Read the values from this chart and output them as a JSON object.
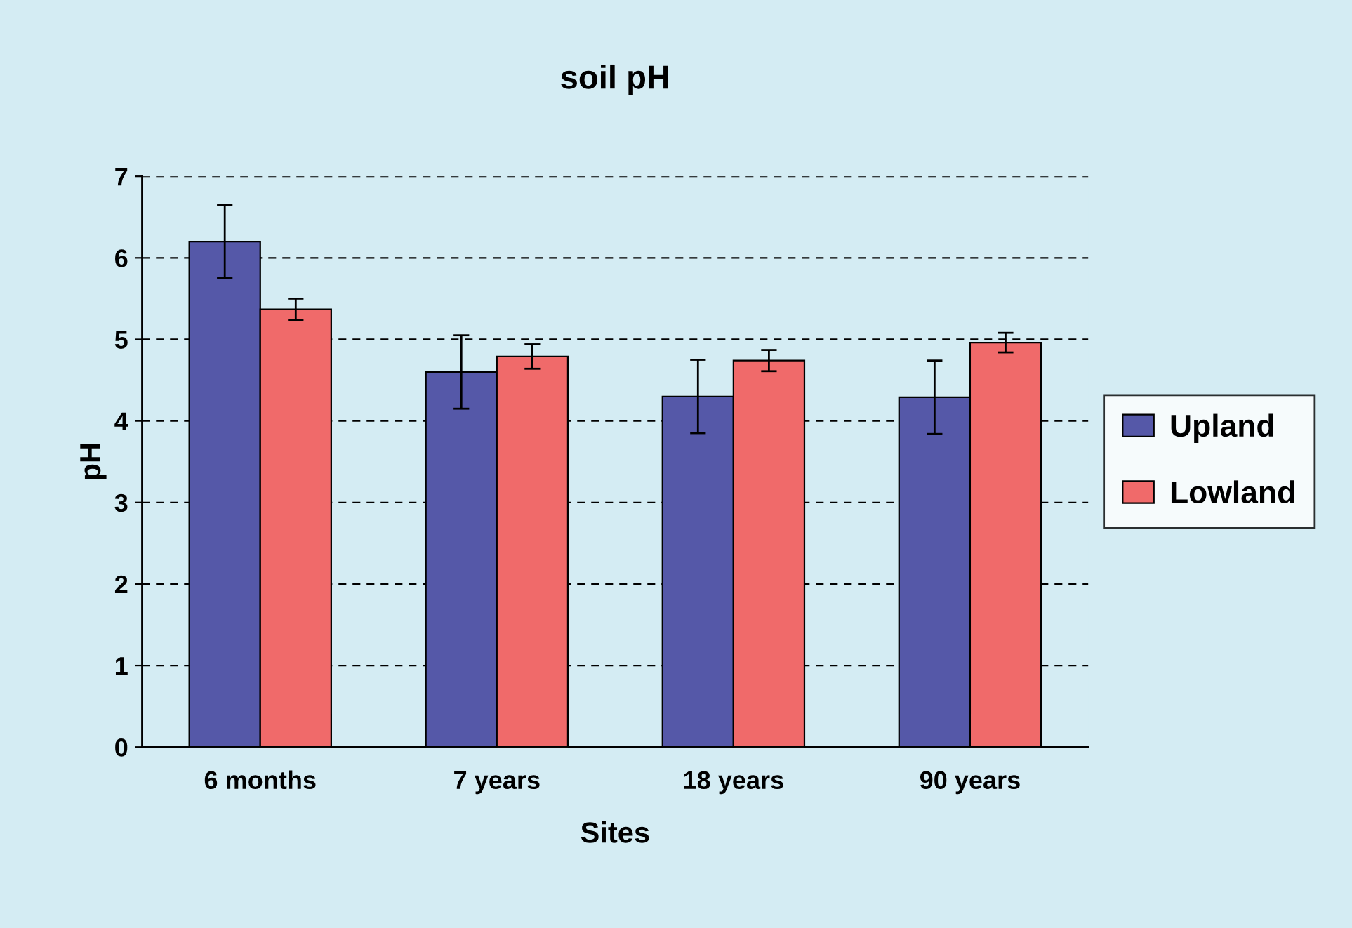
{
  "chart_data": {
    "type": "bar",
    "title": "soil pH",
    "xlabel": "Sites",
    "ylabel": "pH",
    "categories": [
      "6 months",
      "7 years",
      "18 years",
      "90 years"
    ],
    "series": [
      {
        "name": "Upland",
        "color": "#5558a8",
        "values": [
          6.2,
          4.6,
          4.3,
          4.29
        ],
        "errors": [
          0.45,
          0.45,
          0.45,
          0.45
        ]
      },
      {
        "name": "Lowland",
        "color": "#f06a6a",
        "values": [
          5.37,
          4.79,
          4.74,
          4.96
        ],
        "errors": [
          0.13,
          0.15,
          0.13,
          0.12
        ]
      }
    ],
    "ylim": [
      0,
      7
    ],
    "yticks": [
      0,
      1,
      2,
      3,
      4,
      5,
      6,
      7
    ],
    "grid": "y",
    "legend": "right"
  }
}
